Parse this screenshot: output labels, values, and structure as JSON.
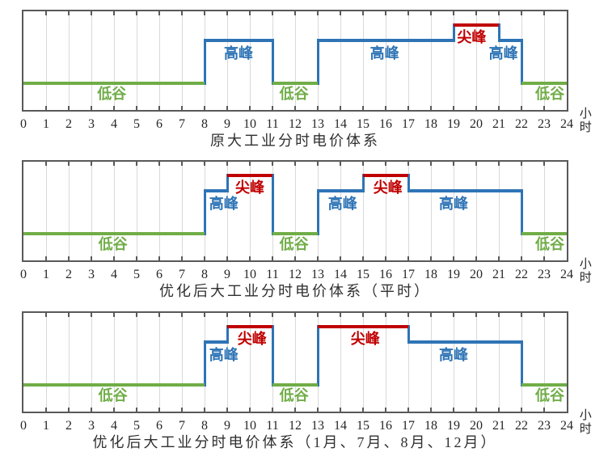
{
  "colors": {
    "valley_green": "#70AD47",
    "peak_blue": "#2E74B5",
    "critical_red": "#C00000",
    "gridline": "#D9D9D9",
    "axis_border": "#595959",
    "text": "#303030"
  },
  "axis": {
    "unit": "小时",
    "ticks": [
      0,
      1,
      2,
      3,
      4,
      5,
      6,
      7,
      8,
      9,
      10,
      11,
      12,
      13,
      14,
      15,
      16,
      17,
      18,
      19,
      20,
      21,
      22,
      23,
      24
    ]
  },
  "tiers": {
    "valley": {
      "label": "低谷",
      "color": "#70AD47",
      "price_rank": 1
    },
    "peak": {
      "label": "高峰",
      "color": "#2E74B5",
      "price_rank": 2
    },
    "critical": {
      "label": "尖峰",
      "color": "#C00000",
      "price_rank": 3
    }
  },
  "chart_data": [
    {
      "type": "line",
      "subtype": "step",
      "title": "原大工业分时电价体系",
      "xlabel": "小时",
      "xlim": [
        0,
        24
      ],
      "xticks": [
        0,
        1,
        2,
        3,
        4,
        5,
        6,
        7,
        8,
        9,
        10,
        11,
        12,
        13,
        14,
        15,
        16,
        17,
        18,
        19,
        20,
        21,
        22,
        23,
        24
      ],
      "grid": "vertical-hourly",
      "segments": [
        {
          "from": 0,
          "to": 8,
          "tier": "valley"
        },
        {
          "from": 8,
          "to": 11,
          "tier": "peak"
        },
        {
          "from": 11,
          "to": 13,
          "tier": "valley"
        },
        {
          "from": 13,
          "to": 19,
          "tier": "peak"
        },
        {
          "from": 19,
          "to": 21,
          "tier": "critical"
        },
        {
          "from": 21,
          "to": 22,
          "tier": "peak"
        },
        {
          "from": 22,
          "to": 24,
          "tier": "valley"
        }
      ],
      "labels": [
        {
          "tier": "valley",
          "x_hour": 3.9
        },
        {
          "tier": "peak",
          "x_hour": 9.5
        },
        {
          "tier": "valley",
          "x_hour": 11.95
        },
        {
          "tier": "peak",
          "x_hour": 15.95
        },
        {
          "tier": "critical",
          "x_hour": 19.8
        },
        {
          "tier": "peak",
          "x_hour": 21.2
        },
        {
          "tier": "valley",
          "x_hour": 23.25
        }
      ]
    },
    {
      "type": "line",
      "subtype": "step",
      "title": "优化后大工业分时电价体系（平时）",
      "xlabel": "小时",
      "xlim": [
        0,
        24
      ],
      "xticks": [
        0,
        1,
        2,
        3,
        4,
        5,
        6,
        7,
        8,
        9,
        10,
        11,
        12,
        13,
        14,
        15,
        16,
        17,
        18,
        19,
        20,
        21,
        22,
        23,
        24
      ],
      "grid": "vertical-hourly",
      "segments": [
        {
          "from": 0,
          "to": 8,
          "tier": "valley"
        },
        {
          "from": 8,
          "to": 9,
          "tier": "peak"
        },
        {
          "from": 9,
          "to": 11,
          "tier": "critical"
        },
        {
          "from": 11,
          "to": 13,
          "tier": "valley"
        },
        {
          "from": 13,
          "to": 15,
          "tier": "peak"
        },
        {
          "from": 15,
          "to": 17,
          "tier": "critical"
        },
        {
          "from": 17,
          "to": 22,
          "tier": "peak"
        },
        {
          "from": 22,
          "to": 24,
          "tier": "valley"
        }
      ],
      "labels": [
        {
          "tier": "valley",
          "x_hour": 3.95
        },
        {
          "tier": "peak",
          "x_hour": 8.85
        },
        {
          "tier": "critical",
          "x_hour": 10.0
        },
        {
          "tier": "valley",
          "x_hour": 11.95
        },
        {
          "tier": "peak",
          "x_hour": 14.1
        },
        {
          "tier": "critical",
          "x_hour": 16.1
        },
        {
          "tier": "peak",
          "x_hour": 19.0
        },
        {
          "tier": "valley",
          "x_hour": 23.25
        }
      ]
    },
    {
      "type": "line",
      "subtype": "step",
      "title": "优化后大工业分时电价体系（1月、7月、8月、12月）",
      "xlabel": "小时",
      "xlim": [
        0,
        24
      ],
      "xticks": [
        0,
        1,
        2,
        3,
        4,
        5,
        6,
        7,
        8,
        9,
        10,
        11,
        12,
        13,
        14,
        15,
        16,
        17,
        18,
        19,
        20,
        21,
        22,
        23,
        24
      ],
      "grid": "vertical-hourly",
      "segments": [
        {
          "from": 0,
          "to": 8,
          "tier": "valley"
        },
        {
          "from": 8,
          "to": 9,
          "tier": "peak"
        },
        {
          "from": 9,
          "to": 11,
          "tier": "critical"
        },
        {
          "from": 11,
          "to": 13,
          "tier": "valley"
        },
        {
          "from": 13,
          "to": 17,
          "tier": "critical"
        },
        {
          "from": 17,
          "to": 22,
          "tier": "peak"
        },
        {
          "from": 22,
          "to": 24,
          "tier": "valley"
        }
      ],
      "labels": [
        {
          "tier": "valley",
          "x_hour": 3.95
        },
        {
          "tier": "peak",
          "x_hour": 8.85
        },
        {
          "tier": "critical",
          "x_hour": 10.1
        },
        {
          "tier": "valley",
          "x_hour": 11.95
        },
        {
          "tier": "critical",
          "x_hour": 15.1
        },
        {
          "tier": "peak",
          "x_hour": 19.0
        },
        {
          "tier": "valley",
          "x_hour": 23.25
        }
      ]
    }
  ]
}
